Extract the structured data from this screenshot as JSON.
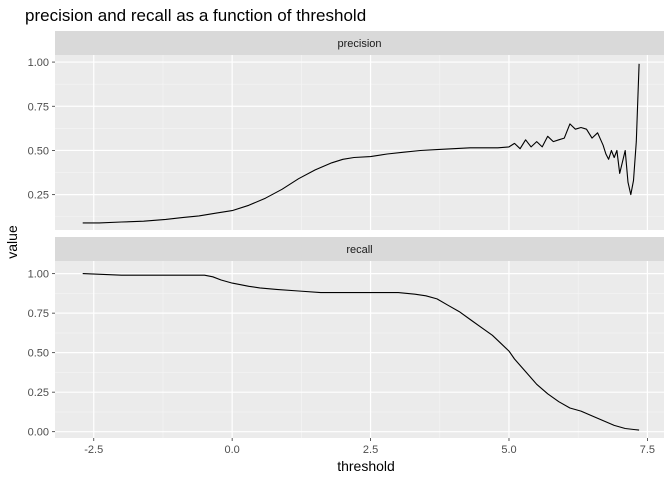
{
  "chart_data": {
    "type": "line",
    "title": "precision and recall as a function of threshold",
    "xlabel": "threshold",
    "ylabel": "value",
    "xlim": [
      -3.2,
      7.8
    ],
    "x_ticks": [
      -2.5,
      0.0,
      2.5,
      5.0,
      7.5
    ],
    "x_tick_labels": [
      "-2.5",
      "0.0",
      "2.5",
      "5.0",
      "7.5"
    ],
    "grid": true,
    "facets": [
      {
        "name": "precision",
        "ylim": [
          0.05,
          1.04
        ],
        "y_ticks": [
          0.25,
          0.5,
          0.75,
          1.0
        ],
        "y_tick_labels": [
          "0.25",
          "0.50",
          "0.75",
          "1.00"
        ],
        "x": [
          -2.7,
          -2.4,
          -2.0,
          -1.6,
          -1.2,
          -0.9,
          -0.6,
          -0.3,
          0.0,
          0.3,
          0.6,
          0.9,
          1.2,
          1.5,
          1.8,
          2.0,
          2.2,
          2.5,
          2.8,
          3.1,
          3.4,
          3.7,
          4.0,
          4.3,
          4.6,
          4.8,
          5.0,
          5.1,
          5.2,
          5.3,
          5.4,
          5.5,
          5.6,
          5.7,
          5.8,
          5.9,
          6.0,
          6.1,
          6.2,
          6.3,
          6.4,
          6.5,
          6.6,
          6.7,
          6.75,
          6.8,
          6.85,
          6.9,
          6.95,
          7.0,
          7.1,
          7.15,
          7.2,
          7.25,
          7.3,
          7.35
        ],
        "y": [
          0.09,
          0.09,
          0.095,
          0.1,
          0.11,
          0.12,
          0.13,
          0.145,
          0.16,
          0.19,
          0.23,
          0.28,
          0.34,
          0.39,
          0.43,
          0.45,
          0.46,
          0.465,
          0.48,
          0.49,
          0.5,
          0.505,
          0.51,
          0.515,
          0.515,
          0.515,
          0.52,
          0.54,
          0.51,
          0.56,
          0.52,
          0.55,
          0.52,
          0.58,
          0.55,
          0.56,
          0.57,
          0.65,
          0.62,
          0.63,
          0.62,
          0.57,
          0.6,
          0.53,
          0.48,
          0.45,
          0.5,
          0.46,
          0.5,
          0.37,
          0.5,
          0.32,
          0.25,
          0.33,
          0.55,
          0.99
        ]
      },
      {
        "name": "recall",
        "ylim": [
          -0.04,
          1.08
        ],
        "y_ticks": [
          0.0,
          0.25,
          0.5,
          0.75,
          1.0
        ],
        "y_tick_labels": [
          "0.00",
          "0.25",
          "0.50",
          "0.75",
          "1.00"
        ],
        "x": [
          -2.7,
          -2.0,
          -1.5,
          -1.0,
          -0.5,
          -0.35,
          -0.2,
          0.0,
          0.3,
          0.5,
          0.8,
          1.2,
          1.6,
          2.0,
          2.5,
          3.0,
          3.3,
          3.5,
          3.7,
          3.9,
          4.1,
          4.3,
          4.5,
          4.7,
          4.85,
          5.0,
          5.1,
          5.3,
          5.5,
          5.7,
          5.9,
          6.1,
          6.3,
          6.5,
          6.7,
          6.9,
          7.1,
          7.35
        ],
        "y": [
          1.0,
          0.99,
          0.99,
          0.99,
          0.99,
          0.98,
          0.96,
          0.94,
          0.92,
          0.91,
          0.9,
          0.89,
          0.88,
          0.88,
          0.88,
          0.88,
          0.87,
          0.86,
          0.84,
          0.8,
          0.76,
          0.71,
          0.66,
          0.61,
          0.56,
          0.51,
          0.46,
          0.38,
          0.3,
          0.24,
          0.19,
          0.15,
          0.13,
          0.1,
          0.07,
          0.04,
          0.02,
          0.01
        ]
      }
    ]
  }
}
